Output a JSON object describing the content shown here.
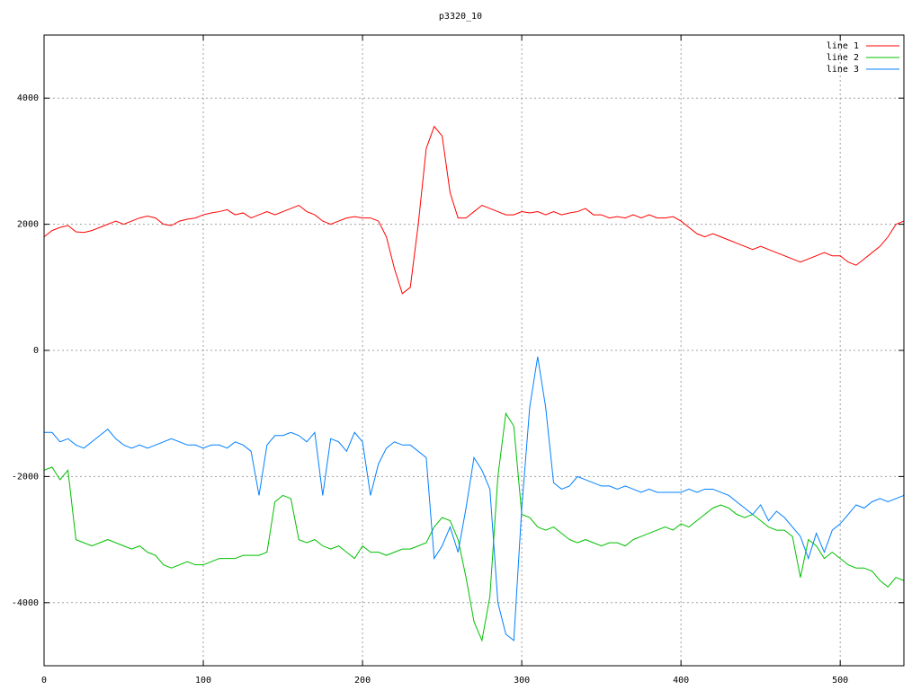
{
  "chart_data": {
    "type": "line",
    "title": "p3320_10",
    "x": [
      0,
      5,
      10,
      15,
      20,
      25,
      30,
      35,
      40,
      45,
      50,
      55,
      60,
      65,
      70,
      75,
      80,
      85,
      90,
      95,
      100,
      105,
      110,
      115,
      120,
      125,
      130,
      135,
      140,
      145,
      150,
      155,
      160,
      165,
      170,
      175,
      180,
      185,
      190,
      195,
      200,
      205,
      210,
      215,
      220,
      225,
      230,
      235,
      240,
      245,
      250,
      255,
      260,
      265,
      270,
      275,
      280,
      285,
      290,
      295,
      300,
      305,
      310,
      315,
      320,
      325,
      330,
      335,
      340,
      345,
      350,
      355,
      360,
      365,
      370,
      375,
      380,
      385,
      390,
      395,
      400,
      405,
      410,
      415,
      420,
      425,
      430,
      435,
      440,
      445,
      450,
      455,
      460,
      465,
      470,
      475,
      480,
      485,
      490,
      495,
      500,
      505,
      510,
      515,
      520,
      525,
      530,
      535,
      540
    ],
    "series": [
      {
        "name": "line 1",
        "color": "#ff0000",
        "values": [
          1800,
          1900,
          1950,
          1980,
          1880,
          1870,
          1900,
          1950,
          2000,
          2050,
          2000,
          2050,
          2100,
          2130,
          2100,
          2000,
          1980,
          2050,
          2080,
          2100,
          2150,
          2180,
          2200,
          2230,
          2150,
          2180,
          2100,
          2150,
          2200,
          2150,
          2200,
          2250,
          2300,
          2200,
          2150,
          2050,
          2000,
          2050,
          2100,
          2120,
          2100,
          2100,
          2050,
          1800,
          1300,
          900,
          1000,
          2000,
          3200,
          3550,
          3400,
          2500,
          2100,
          2100,
          2200,
          2300,
          2250,
          2200,
          2150,
          2150,
          2200,
          2180,
          2200,
          2150,
          2200,
          2150,
          2180,
          2200,
          2250,
          2150,
          2150,
          2100,
          2120,
          2100,
          2150,
          2100,
          2150,
          2100,
          2100,
          2120,
          2050,
          1950,
          1850,
          1800,
          1850,
          1800,
          1750,
          1700,
          1650,
          1600,
          1650,
          1600,
          1550,
          1500,
          1450,
          1400,
          1450,
          1500,
          1550,
          1500,
          1500,
          1400,
          1350,
          1450,
          1550,
          1650,
          1800,
          2000,
          2050
        ]
      },
      {
        "name": "line 2",
        "color": "#00c000",
        "values": [
          -1900,
          -1850,
          -2050,
          -1900,
          -3000,
          -3050,
          -3100,
          -3050,
          -3000,
          -3050,
          -3100,
          -3150,
          -3100,
          -3200,
          -3250,
          -3400,
          -3450,
          -3400,
          -3350,
          -3400,
          -3400,
          -3350,
          -3300,
          -3300,
          -3300,
          -3250,
          -3250,
          -3250,
          -3200,
          -2400,
          -2300,
          -2350,
          -3000,
          -3050,
          -3000,
          -3100,
          -3150,
          -3100,
          -3200,
          -3300,
          -3100,
          -3200,
          -3200,
          -3250,
          -3200,
          -3150,
          -3150,
          -3100,
          -3050,
          -2800,
          -2650,
          -2700,
          -3000,
          -3600,
          -4300,
          -4600,
          -3900,
          -2000,
          -1000,
          -1200,
          -2600,
          -2650,
          -2800,
          -2850,
          -2800,
          -2900,
          -3000,
          -3050,
          -3000,
          -3050,
          -3100,
          -3050,
          -3050,
          -3100,
          -3000,
          -2950,
          -2900,
          -2850,
          -2800,
          -2850,
          -2750,
          -2800,
          -2700,
          -2600,
          -2500,
          -2450,
          -2500,
          -2600,
          -2650,
          -2600,
          -2700,
          -2800,
          -2850,
          -2850,
          -2950,
          -3600,
          -3000,
          -3100,
          -3300,
          -3200,
          -3300,
          -3400,
          -3450,
          -3450,
          -3500,
          -3650,
          -3750,
          -3600,
          -3650
        ]
      },
      {
        "name": "line 3",
        "color": "#0080ff",
        "values": [
          -1300,
          -1300,
          -1450,
          -1400,
          -1500,
          -1550,
          -1450,
          -1350,
          -1250,
          -1400,
          -1500,
          -1550,
          -1500,
          -1550,
          -1500,
          -1450,
          -1400,
          -1450,
          -1500,
          -1500,
          -1550,
          -1500,
          -1500,
          -1550,
          -1450,
          -1500,
          -1600,
          -2300,
          -1500,
          -1350,
          -1350,
          -1300,
          -1350,
          -1450,
          -1300,
          -2300,
          -1400,
          -1450,
          -1600,
          -1300,
          -1450,
          -2300,
          -1800,
          -1550,
          -1450,
          -1500,
          -1500,
          -1600,
          -1700,
          -3300,
          -3100,
          -2800,
          -3200,
          -2500,
          -1700,
          -1900,
          -2200,
          -4000,
          -4500,
          -4600,
          -2500,
          -900,
          -100,
          -900,
          -2100,
          -2200,
          -2150,
          -2000,
          -2050,
          -2100,
          -2150,
          -2150,
          -2200,
          -2150,
          -2200,
          -2250,
          -2200,
          -2250,
          -2250,
          -2250,
          -2250,
          -2200,
          -2250,
          -2200,
          -2200,
          -2250,
          -2300,
          -2400,
          -2500,
          -2600,
          -2450,
          -2700,
          -2550,
          -2650,
          -2800,
          -2950,
          -3300,
          -2900,
          -3200,
          -2850,
          -2750,
          -2600,
          -2450,
          -2500,
          -2400,
          -2350,
          -2400,
          -2350,
          -2300
        ]
      }
    ],
    "xlim": [
      0,
      540
    ],
    "ylim": [
      -5000,
      5000
    ],
    "xticks": [
      0,
      100,
      200,
      300,
      400,
      500
    ],
    "yticks": [
      -4000,
      -2000,
      0,
      2000,
      4000
    ],
    "grid": true,
    "legend": "top-right"
  }
}
